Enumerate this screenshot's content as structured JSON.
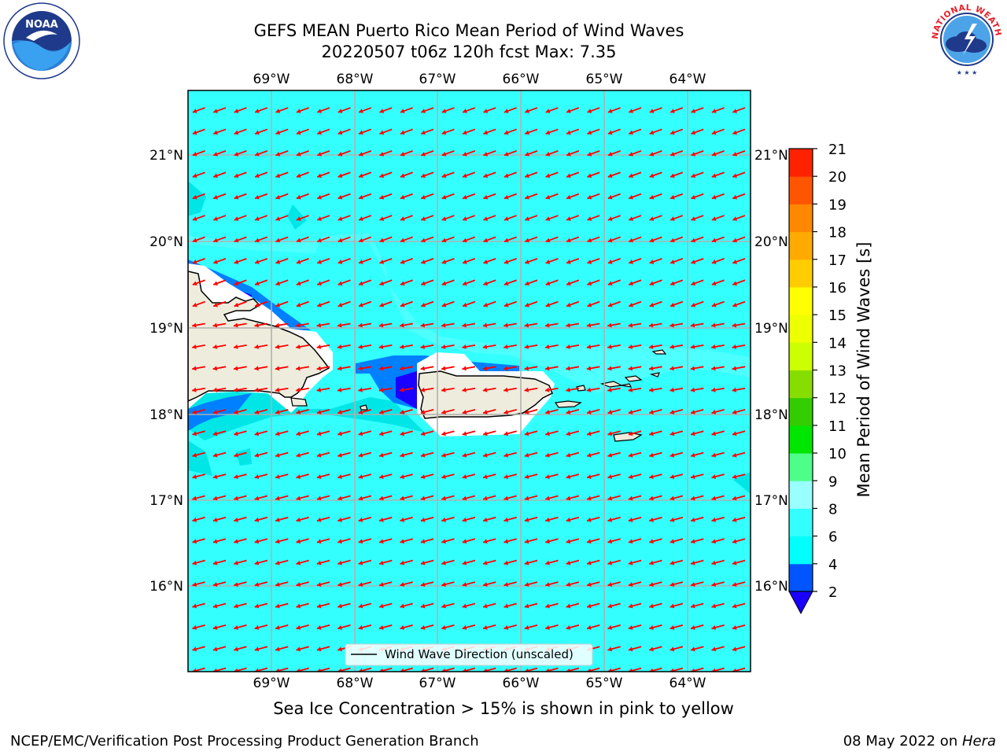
{
  "header": {
    "title_line1": "GEFS MEAN Puerto Rico Mean Period of Wind Waves",
    "title_line2": "20220507 t06z 120h fcst   Max: 7.35"
  },
  "map": {
    "lon_labels": [
      "69°W",
      "68°W",
      "67°W",
      "66°W",
      "65°W",
      "64°W"
    ],
    "lat_labels": [
      "21°N",
      "20°N",
      "19°N",
      "18°N",
      "17°N",
      "16°N"
    ],
    "ocean_color": "#33ffff",
    "land_color": "#eeecdc",
    "vector_color": "#ff0000",
    "grid_color": "#b0b0b0"
  },
  "legend": {
    "label": "Wind Wave Direction (unscaled)"
  },
  "colorbar": {
    "label": "Mean Period of Wind Waves [s]",
    "ticks": [
      "2",
      "4",
      "6",
      "8",
      "9",
      "10",
      "11",
      "12",
      "13",
      "14",
      "15",
      "16",
      "17",
      "18",
      "19",
      "20",
      "21"
    ],
    "colors": [
      "#0055ff",
      "#00ffff",
      "#33ffff",
      "#99ffff",
      "#4dff88",
      "#00e600",
      "#33cc00",
      "#88dd00",
      "#ccff00",
      "#eeff00",
      "#ffff00",
      "#ffcc00",
      "#ffaa00",
      "#ff8800",
      "#ff5500",
      "#ff2200"
    ],
    "under_color": "#1a00ff",
    "over_color": "#ff0000"
  },
  "caption": "Sea Ice Concentration > 15% is shown in pink to yellow",
  "footer": {
    "left": "NCEP/EMC/Verification Post Processing Product Generation Branch",
    "right_date": "08 May 2022 on ",
    "right_host": "Hera"
  },
  "logos": {
    "noaa_text": "NOAA",
    "nws_text": "NATIONAL WEATHER SERVICE"
  }
}
